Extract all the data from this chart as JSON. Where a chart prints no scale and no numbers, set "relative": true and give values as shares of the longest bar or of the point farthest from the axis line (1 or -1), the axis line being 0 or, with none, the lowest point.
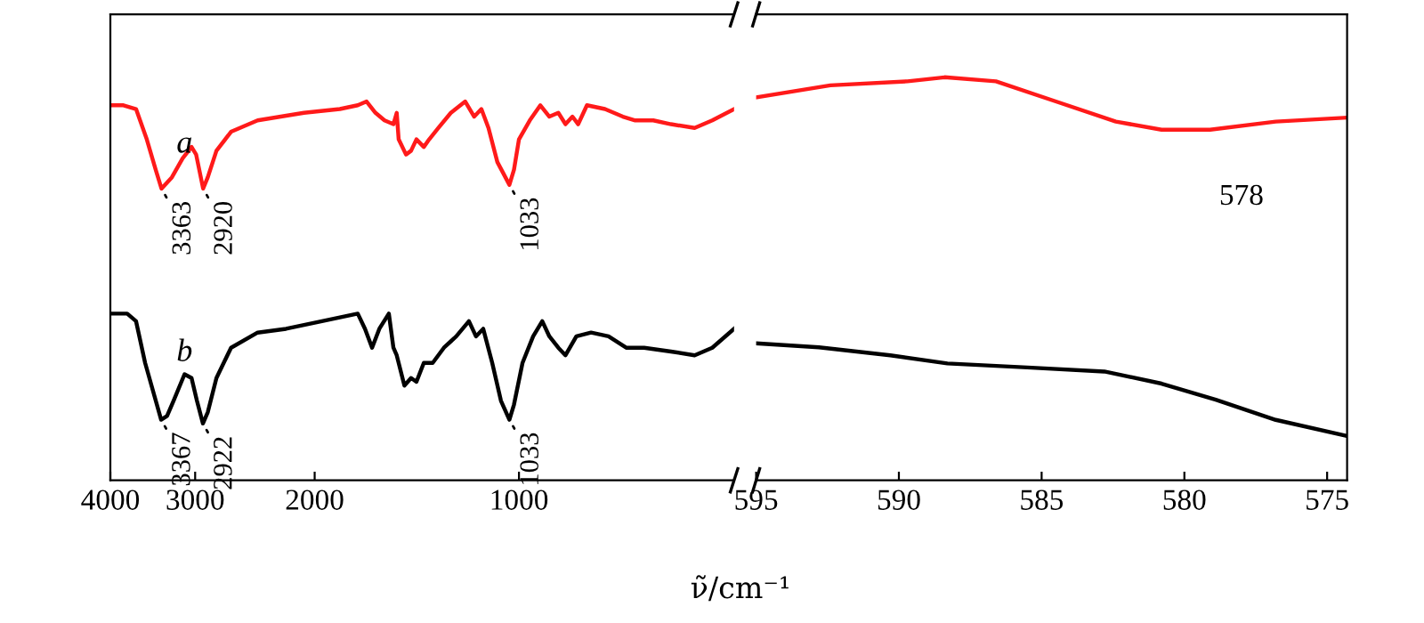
{
  "chart_data": [
    {
      "type": "line",
      "relative": true,
      "log": "x",
      "xlim": [
        4000,
        482
      ],
      "xticks": [
        4000,
        3000,
        2000,
        1000
      ],
      "tick_labels": "x",
      "xlabel": "ν̃/cm⁻¹",
      "legend": false,
      "series": [
        {
          "name": "a",
          "color": "#ff1a1a",
          "x": [
            4000,
            3826,
            3666,
            3535,
            3430,
            3363,
            3246,
            3130,
            3037,
            2990,
            2920,
            2874,
            2791,
            2656,
            2427,
            2074,
            1836,
            1728,
            1677,
            1627,
            1578,
            1531,
            1514,
            1504,
            1467,
            1442,
            1416,
            1381,
            1356,
            1315,
            1260,
            1200,
            1164,
            1136,
            1109,
            1076,
            1033,
            1017,
            1000,
            964,
            930,
            902,
            875,
            854,
            834,
            818,
            794,
            747,
            703,
            674,
            634,
            597,
            551,
            519,
            482
          ],
          "values": [
            0.99,
            0.99,
            0.98,
            0.9,
            0.82,
            0.77,
            0.8,
            0.85,
            0.88,
            0.86,
            0.77,
            0.8,
            0.87,
            0.92,
            0.95,
            0.97,
            0.98,
            0.99,
            1.0,
            0.97,
            0.95,
            0.94,
            0.97,
            0.9,
            0.86,
            0.87,
            0.9,
            0.88,
            0.9,
            0.93,
            0.97,
            1.0,
            0.96,
            0.98,
            0.93,
            0.84,
            0.78,
            0.82,
            0.9,
            0.95,
            0.99,
            0.96,
            0.97,
            0.94,
            0.96,
            0.94,
            0.99,
            0.98,
            0.96,
            0.95,
            0.95,
            0.94,
            0.93,
            0.95,
            0.98
          ]
        },
        {
          "name": "b",
          "color": "#000000",
          "x": [
            4000,
            3778,
            3666,
            3555,
            3367,
            3300,
            3228,
            3110,
            3037,
            2982,
            2922,
            2874,
            2791,
            2656,
            2427,
            2204,
            1951,
            1836,
            1728,
            1686,
            1646,
            1606,
            1555,
            1531,
            1514,
            1475,
            1442,
            1416,
            1381,
            1340,
            1290,
            1237,
            1185,
            1157,
            1129,
            1095,
            1063,
            1033,
            1017,
            988,
            953,
            924,
            902,
            875,
            854,
            823,
            783,
            738,
            695,
            654,
            597,
            551,
            519,
            482
          ],
          "values": [
            0.44,
            0.44,
            0.42,
            0.31,
            0.16,
            0.17,
            0.21,
            0.28,
            0.27,
            0.21,
            0.15,
            0.18,
            0.27,
            0.35,
            0.39,
            0.4,
            0.42,
            0.43,
            0.44,
            0.4,
            0.35,
            0.4,
            0.44,
            0.35,
            0.33,
            0.25,
            0.27,
            0.26,
            0.31,
            0.31,
            0.35,
            0.38,
            0.42,
            0.38,
            0.4,
            0.31,
            0.21,
            0.16,
            0.2,
            0.31,
            0.38,
            0.42,
            0.38,
            0.35,
            0.33,
            0.38,
            0.39,
            0.38,
            0.35,
            0.35,
            0.34,
            0.33,
            0.35,
            0.4
          ]
        }
      ],
      "annotations": [
        {
          "text": "3363",
          "x": 3363,
          "y": 0.77
        },
        {
          "text": "2920",
          "x": 2920,
          "y": 0.77
        },
        {
          "text": "1033",
          "x": 1033,
          "y": 0.78
        },
        {
          "text": "3367",
          "x": 3367,
          "y": 0.16
        },
        {
          "text": "2922",
          "x": 2922,
          "y": 0.15
        },
        {
          "text": "1033",
          "x": 1033,
          "y": 0.16
        }
      ]
    },
    {
      "type": "line",
      "relative": true,
      "xlim": [
        595,
        574.3
      ],
      "xticks": [
        595,
        590,
        585,
        580,
        575
      ],
      "tick_labels": "x",
      "legend": false,
      "series": [
        {
          "color": "#ff1a1a",
          "x": [
            595,
            592.4,
            589.7,
            588.4,
            586.6,
            584.5,
            582.4,
            580.8,
            579.1,
            576.8,
            574.3
          ],
          "values": [
            0.95,
            0.98,
            0.99,
            1.0,
            0.99,
            0.94,
            0.89,
            0.87,
            0.87,
            0.89,
            0.9
          ]
        },
        {
          "color": "#000000",
          "x": [
            595,
            592.8,
            590.3,
            588.3,
            585.5,
            582.8,
            580.8,
            578.9,
            576.8,
            574.3
          ],
          "values": [
            0.34,
            0.33,
            0.31,
            0.29,
            0.28,
            0.27,
            0.24,
            0.2,
            0.15,
            0.11
          ]
        }
      ],
      "annotations": [
        {
          "text": "578",
          "x": 578,
          "y": 0.87
        }
      ]
    }
  ]
}
